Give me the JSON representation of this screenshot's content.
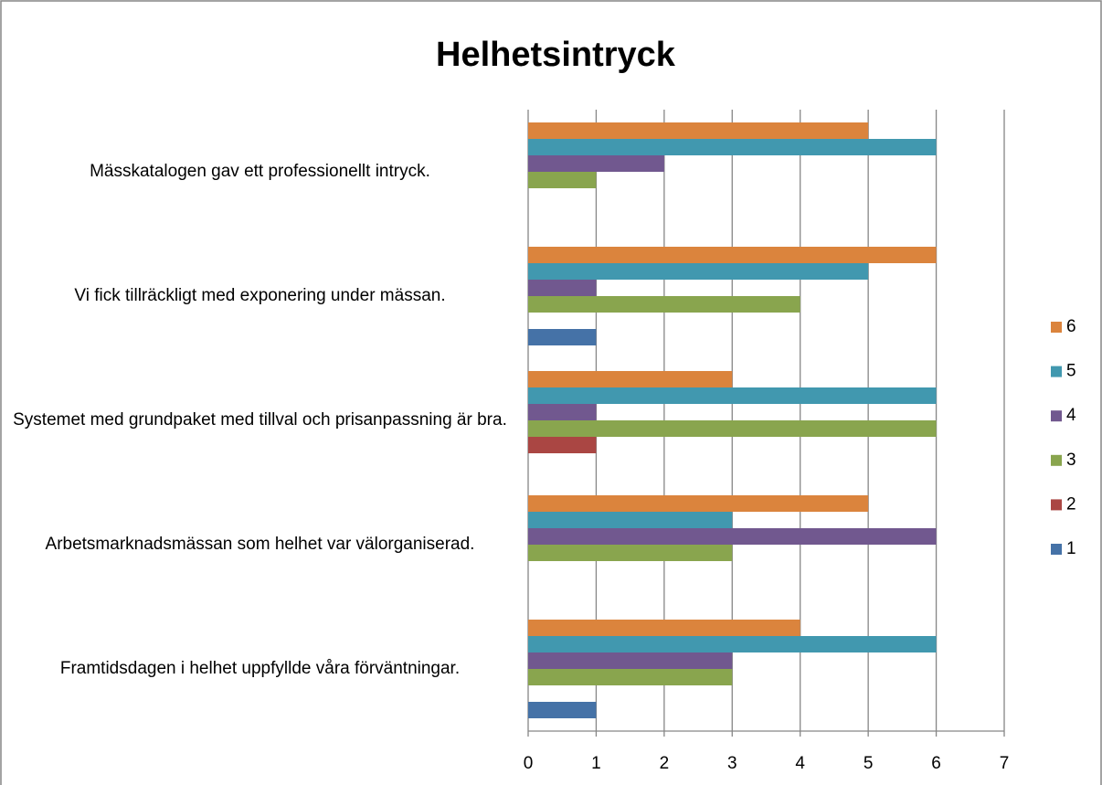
{
  "chart_data": {
    "type": "bar",
    "orientation": "horizontal",
    "title": "Helhetsintryck",
    "categories": [
      "Mässkatalogen gav ett professionellt intryck.",
      "Vi fick tillräckligt med exponering under mässan.",
      "Systemet med grundpaket med tillval och prisanpassning är bra.",
      "Arbetsmarknadsmässan som helhet var välorganiserad.",
      "Framtidsdagen i helhet uppfyllde våra förväntningar."
    ],
    "series": [
      {
        "name": "1",
        "color": "#4572a7",
        "values": [
          0,
          1,
          0,
          0,
          1
        ]
      },
      {
        "name": "2",
        "color": "#aa4643",
        "values": [
          0,
          0,
          1,
          0,
          0
        ]
      },
      {
        "name": "3",
        "color": "#89a54e",
        "values": [
          1,
          4,
          6,
          3,
          3
        ]
      },
      {
        "name": "4",
        "color": "#71588f",
        "values": [
          2,
          1,
          1,
          6,
          3
        ]
      },
      {
        "name": "5",
        "color": "#4198af",
        "values": [
          6,
          5,
          6,
          3,
          6
        ]
      },
      {
        "name": "6",
        "color": "#db843d",
        "values": [
          5,
          6,
          3,
          5,
          4
        ]
      }
    ],
    "xlim": [
      0,
      7
    ],
    "xticks": [
      0,
      1,
      2,
      3,
      4,
      5,
      6,
      7
    ],
    "grid": true,
    "legend": "right"
  }
}
